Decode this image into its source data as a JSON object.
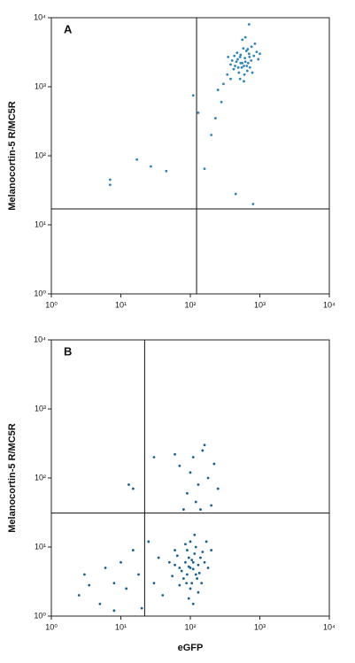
{
  "chart_data": [
    {
      "type": "scatter",
      "title": "A",
      "y_label": "Melanocortin-5 R/MC5R",
      "color": "#2a86bd",
      "log_x": true,
      "log_y": true,
      "xlim": [
        1,
        10000
      ],
      "ylim": [
        1,
        10000
      ],
      "xticks": [
        {
          "value": 1,
          "label": "10⁰"
        },
        {
          "value": 10,
          "label": "10¹"
        },
        {
          "value": 100,
          "label": "10²"
        },
        {
          "value": 1000,
          "label": "10³"
        },
        {
          "value": 10000,
          "label": "10⁴"
        }
      ],
      "yticks": [
        {
          "value": 1,
          "label": "10⁰"
        },
        {
          "value": 10,
          "label": "10¹"
        },
        {
          "value": 100,
          "label": "10²"
        },
        {
          "value": 1000,
          "label": "10³"
        },
        {
          "value": 10000,
          "label": "10⁴"
        }
      ],
      "quadrant_x": 123,
      "quadrant_y": 17,
      "x": [
        560,
        480,
        650,
        700,
        420,
        520,
        600,
        750,
        380,
        640,
        550,
        460,
        820,
        500,
        580,
        720,
        430,
        610,
        340,
        900,
        520,
        680,
        470,
        590,
        760,
        400,
        530,
        660,
        300,
        850,
        620,
        490,
        710,
        560,
        380,
        950,
        250,
        440,
        670,
        590,
        780,
        350,
        1000,
        530,
        620,
        7,
        7,
        17,
        27,
        45,
        110,
        130,
        160,
        200,
        450,
        800,
        700,
        230,
        280
      ],
      "values": [
        2200,
        2500,
        2000,
        3000,
        1800,
        2700,
        1500,
        2400,
        2100,
        3300,
        1900,
        2300,
        2800,
        1600,
        3600,
        1900,
        2800,
        2600,
        1500,
        3200,
        1300,
        2200,
        3100,
        2000,
        3800,
        2400,
        2900,
        1700,
        1100,
        4200,
        2300,
        1900,
        2700,
        4800,
        1300,
        2500,
        900,
        2000,
        3500,
        1200,
        1600,
        2700,
        3000,
        2200,
        5200,
        45,
        38,
        88,
        70,
        60,
        750,
        420,
        65,
        200,
        28,
        20,
        8000,
        350,
        600
      ]
    },
    {
      "type": "scatter",
      "title": "B",
      "y_label": "Melanocortin-5 R/MC5R",
      "x_label": "eGFP",
      "color": "#13628f",
      "log_x": true,
      "log_y": true,
      "xlim": [
        1,
        10000
      ],
      "ylim": [
        1,
        10000
      ],
      "xticks": [
        {
          "value": 1,
          "label": "10⁰"
        },
        {
          "value": 10,
          "label": "10¹"
        },
        {
          "value": 100,
          "label": "10²"
        },
        {
          "value": 1000,
          "label": "10³"
        },
        {
          "value": 10000,
          "label": "10⁴"
        }
      ],
      "yticks": [
        {
          "value": 1,
          "label": "10⁰"
        },
        {
          "value": 10,
          "label": "10¹"
        },
        {
          "value": 100,
          "label": "10²"
        },
        {
          "value": 1000,
          "label": "10³"
        },
        {
          "value": 10000,
          "label": "10⁴"
        }
      ],
      "quadrant_x": 22,
      "quadrant_y": 31,
      "x": [
        100,
        90,
        110,
        80,
        130,
        95,
        120,
        70,
        105,
        140,
        85,
        115,
        100,
        75,
        125,
        160,
        90,
        60,
        110,
        135,
        95,
        105,
        88,
        150,
        120,
        70,
        180,
        100,
        65,
        130,
        95,
        200,
        55,
        115,
        85,
        145,
        50,
        110,
        170,
        60,
        70,
        110,
        150,
        180,
        90,
        200,
        130,
        60,
        160,
        120,
        220,
        80,
        100,
        250,
        140,
        2.5,
        3,
        5,
        8,
        10,
        12,
        15,
        18,
        25,
        30,
        35,
        40,
        20,
        6,
        13,
        15,
        30,
        3.5,
        8
      ],
      "values": [
        5,
        4,
        6,
        3.5,
        5.5,
        7,
        4,
        5,
        3,
        7,
        6,
        8,
        2.5,
        4.5,
        3.5,
        6,
        9,
        5.5,
        4.8,
        4.2,
        5.2,
        6.5,
        3,
        8.5,
        10,
        2.8,
        5,
        12,
        7.5,
        2.2,
        1.8,
        9,
        3.8,
        15,
        11,
        3,
        6,
        1.5,
        12,
        9,
        150,
        200,
        250,
        100,
        60,
        40,
        80,
        220,
        300,
        45,
        160,
        35,
        120,
        70,
        35,
        2,
        4,
        1.5,
        3,
        6,
        2.5,
        9,
        4,
        12,
        3,
        7,
        2,
        1.3,
        5,
        80,
        70,
        200,
        2.8,
        1.2
      ]
    }
  ]
}
